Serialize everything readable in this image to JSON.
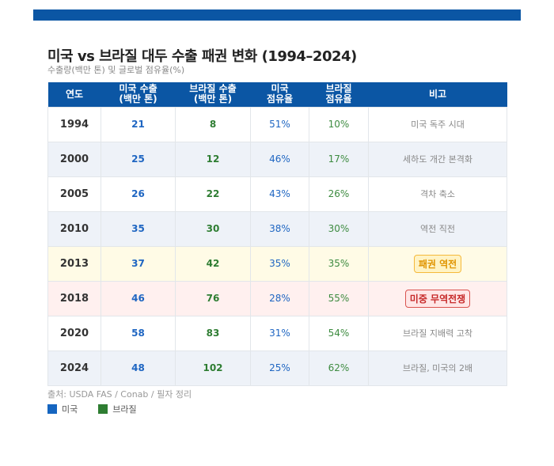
{
  "title": "미국 vs 브라질 대두 수출 패권 변화 (1994–2024)",
  "subtitle": "수출량(백만 톤) 및 글로벌 점유율(%)",
  "headers": [
    "연도",
    "미국 수출\n(백만 톤)",
    "브라질 수출\n(백만 톤)",
    "미국\n점유율",
    "브라질\n점유율",
    "비고"
  ],
  "rows": [
    {
      "year": "1994",
      "us": "21",
      "br": "8",
      "us_share": "51%",
      "br_share": "10%",
      "note": "미국 독주 시대"
    },
    {
      "year": "2000",
      "us": "25",
      "br": "12",
      "us_share": "46%",
      "br_share": "17%",
      "note": "세하도 개간 본격화"
    },
    {
      "year": "2005",
      "us": "26",
      "br": "22",
      "us_share": "43%",
      "br_share": "26%",
      "note": "격차 축소"
    },
    {
      "year": "2010",
      "us": "35",
      "br": "30",
      "us_share": "38%",
      "br_share": "30%",
      "note": "역전 직전"
    },
    {
      "year": "2013",
      "us": "37",
      "br": "42",
      "us_share": "35%",
      "br_share": "35%",
      "note": "패권 역전"
    },
    {
      "year": "2018",
      "us": "46",
      "br": "76",
      "us_share": "28%",
      "br_share": "55%",
      "note": "미중 무역전쟁"
    },
    {
      "year": "2020",
      "us": "58",
      "br": "83",
      "us_share": "31%",
      "br_share": "54%",
      "note": "브라질 지배력 고착"
    },
    {
      "year": "2024",
      "us": "48",
      "br": "102",
      "us_share": "25%",
      "br_share": "62%",
      "note": "브라질, 미국의 2배"
    }
  ],
  "source": "출처: USDA FAS / Conab / 필자 정리",
  "legend": [
    {
      "label": "미국",
      "color": "#1565c0"
    },
    {
      "label": "브라질",
      "color": "#2e7d32"
    }
  ],
  "colors": {
    "header": "#0b56a4"
  }
}
